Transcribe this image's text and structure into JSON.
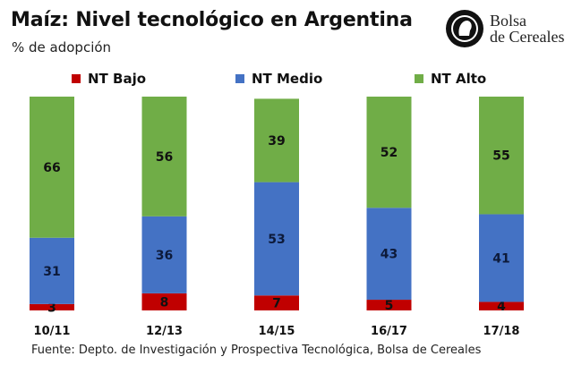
{
  "chart_data": {
    "type": "bar",
    "stacked": true,
    "title": "Maíz: Nivel tecnológico en Argentina",
    "subtitle": "% de adopción",
    "xlabel": "",
    "ylabel": "",
    "ylim": [
      0,
      100
    ],
    "grid": false,
    "legend_position": "top",
    "categories": [
      "10/11",
      "12/13",
      "14/15",
      "16/17",
      "17/18"
    ],
    "series": [
      {
        "name": "NT Bajo",
        "color": "#C00000",
        "values": [
          3,
          8,
          7,
          5,
          4
        ]
      },
      {
        "name": "NT Medio",
        "color": "#4472C4",
        "values": [
          31,
          36,
          53,
          43,
          41
        ]
      },
      {
        "name": "NT Alto",
        "color": "#70AD47",
        "values": [
          66,
          56,
          39,
          52,
          55
        ]
      }
    ],
    "source": "Fuente: Depto. de Investigación y Prospectiva Tecnológica, Bolsa de Cereales"
  },
  "logo": {
    "line1": "Bolsa",
    "line2": "de Cereales",
    "icon": "seal-icon"
  }
}
